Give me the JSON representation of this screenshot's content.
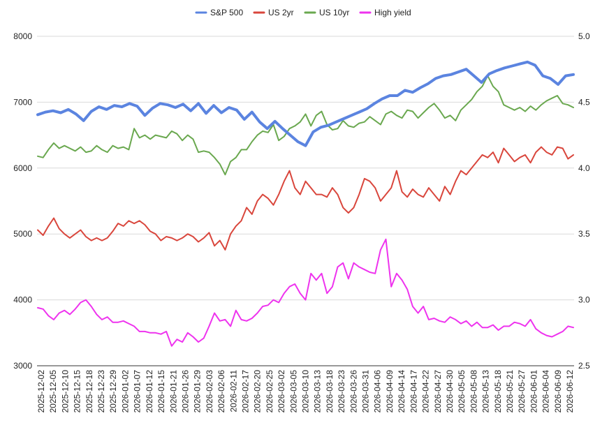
{
  "chart_data": {
    "type": "line",
    "title": "",
    "legend_position": "top",
    "grid": "horizontal",
    "x_tick_labels": [
      "2025-12-02",
      "2025-12-05",
      "2025-12-10",
      "2025-12-15",
      "2025-12-18",
      "2025-12-23",
      "2025-12-29",
      "2026-01-02",
      "2026-01-07",
      "2026-01-12",
      "2026-01-15",
      "2026-01-21",
      "2026-01-26",
      "2026-01-29",
      "2026-02-03",
      "2026-02-06",
      "2026-02-11",
      "2026-02-17",
      "2026-02-20",
      "2026-02-25",
      "2026-03-02",
      "2026-03-05",
      "2026-03-10",
      "2026-03-13",
      "2026-03-18",
      "2026-03-23",
      "2026-03-26",
      "2026-03-31",
      "2026-04-06",
      "2026-04-09",
      "2026-04-14",
      "2026-04-17",
      "2026-04-22",
      "2026-04-27",
      "2026-04-30",
      "2026-05-05",
      "2026-05-08",
      "2026-05-13",
      "2026-05-18",
      "2026-05-21",
      "2026-05-27",
      "2026-06-01",
      "2026-06-04",
      "2026-06-09",
      "2026-06-12"
    ],
    "y_left": {
      "min": 3000,
      "max": 8000,
      "ticks": [
        "3000",
        "4000",
        "5000",
        "6000",
        "7000",
        "8000"
      ]
    },
    "y_right": {
      "min": 2.5,
      "max": 5.0,
      "ticks": [
        "2.5",
        "3.0",
        "3.5",
        "4.0",
        "4.5",
        "5.0"
      ]
    },
    "series": [
      {
        "name": "S&P 500",
        "axis": "left",
        "color": "#5b84e0",
        "width": 4,
        "values": [
          6810,
          6850,
          6870,
          6840,
          6890,
          6820,
          6720,
          6860,
          6930,
          6890,
          6950,
          6930,
          6980,
          6940,
          6800,
          6910,
          6980,
          6960,
          6920,
          6970,
          6870,
          6980,
          6830,
          6950,
          6840,
          6920,
          6880,
          6740,
          6850,
          6700,
          6600,
          6710,
          6600,
          6500,
          6400,
          6340,
          6550,
          6620,
          6650,
          6700,
          6750,
          6800,
          6850,
          6900,
          6980,
          7050,
          7100,
          7100,
          7180,
          7150,
          7220,
          7280,
          7360,
          7400,
          7420,
          7460,
          7500,
          7400,
          7300,
          7430,
          7480,
          7520,
          7550,
          7580,
          7610,
          7560,
          7400,
          7360,
          7270,
          7400,
          7420
        ]
      },
      {
        "name": "US 2yr",
        "axis": "right",
        "color": "#d9463c",
        "width": 2,
        "values": [
          3.53,
          3.49,
          3.56,
          3.62,
          3.54,
          3.5,
          3.47,
          3.5,
          3.53,
          3.48,
          3.45,
          3.47,
          3.45,
          3.47,
          3.52,
          3.58,
          3.56,
          3.6,
          3.58,
          3.6,
          3.57,
          3.52,
          3.5,
          3.45,
          3.48,
          3.47,
          3.45,
          3.47,
          3.5,
          3.48,
          3.44,
          3.47,
          3.51,
          3.41,
          3.45,
          3.38,
          3.5,
          3.56,
          3.6,
          3.7,
          3.65,
          3.75,
          3.8,
          3.77,
          3.72,
          3.8,
          3.9,
          3.98,
          3.85,
          3.8,
          3.9,
          3.85,
          3.8,
          3.8,
          3.78,
          3.85,
          3.8,
          3.7,
          3.66,
          3.7,
          3.8,
          3.92,
          3.9,
          3.85,
          3.75,
          3.8,
          3.85,
          3.98,
          3.82,
          3.78,
          3.84,
          3.8,
          3.78,
          3.85,
          3.8,
          3.75,
          3.86,
          3.8,
          3.9,
          3.98,
          3.95,
          4.0,
          4.05,
          4.1,
          4.08,
          4.12,
          4.04,
          4.15,
          4.1,
          4.05,
          4.08,
          4.1,
          4.04,
          4.12,
          4.16,
          4.12,
          4.1,
          4.16,
          4.15,
          4.07,
          4.1
        ]
      },
      {
        "name": "US 10yr",
        "axis": "right",
        "color": "#6aa84f",
        "width": 2,
        "values": [
          4.09,
          4.08,
          4.14,
          4.19,
          4.15,
          4.17,
          4.15,
          4.13,
          4.16,
          4.12,
          4.13,
          4.17,
          4.14,
          4.12,
          4.17,
          4.15,
          4.16,
          4.14,
          4.3,
          4.23,
          4.25,
          4.22,
          4.25,
          4.24,
          4.23,
          4.28,
          4.26,
          4.21,
          4.25,
          4.22,
          4.12,
          4.13,
          4.12,
          4.08,
          4.03,
          3.95,
          4.05,
          4.08,
          4.14,
          4.14,
          4.2,
          4.25,
          4.28,
          4.27,
          4.33,
          4.21,
          4.24,
          4.3,
          4.32,
          4.35,
          4.41,
          4.32,
          4.4,
          4.43,
          4.33,
          4.29,
          4.3,
          4.36,
          4.32,
          4.31,
          4.34,
          4.35,
          4.39,
          4.36,
          4.33,
          4.41,
          4.43,
          4.4,
          4.38,
          4.44,
          4.43,
          4.38,
          4.42,
          4.46,
          4.49,
          4.44,
          4.38,
          4.4,
          4.36,
          4.44,
          4.48,
          4.52,
          4.58,
          4.62,
          4.7,
          4.62,
          4.58,
          4.48,
          4.46,
          4.44,
          4.46,
          4.43,
          4.47,
          4.44,
          4.48,
          4.51,
          4.53,
          4.55,
          4.49,
          4.48,
          4.46
        ]
      },
      {
        "name": "High yield",
        "axis": "right",
        "color": "#ee33ee",
        "width": 2,
        "values": [
          2.94,
          2.93,
          2.88,
          2.85,
          2.9,
          2.92,
          2.89,
          2.93,
          2.98,
          3.0,
          2.95,
          2.89,
          2.85,
          2.87,
          2.83,
          2.83,
          2.84,
          2.82,
          2.8,
          2.76,
          2.76,
          2.75,
          2.75,
          2.74,
          2.76,
          2.65,
          2.7,
          2.68,
          2.75,
          2.72,
          2.68,
          2.71,
          2.8,
          2.9,
          2.84,
          2.85,
          2.8,
          2.92,
          2.85,
          2.84,
          2.86,
          2.9,
          2.95,
          2.96,
          3.0,
          2.98,
          3.05,
          3.1,
          3.12,
          3.05,
          3.0,
          3.2,
          3.15,
          3.2,
          3.05,
          3.1,
          3.25,
          3.28,
          3.16,
          3.28,
          3.25,
          3.23,
          3.21,
          3.2,
          3.38,
          3.46,
          3.1,
          3.2,
          3.15,
          3.08,
          2.95,
          2.9,
          2.95,
          2.85,
          2.86,
          2.84,
          2.83,
          2.87,
          2.85,
          2.82,
          2.84,
          2.8,
          2.83,
          2.79,
          2.79,
          2.81,
          2.77,
          2.8,
          2.8,
          2.83,
          2.82,
          2.8,
          2.85,
          2.78,
          2.75,
          2.73,
          2.72,
          2.74,
          2.76,
          2.8,
          2.79
        ]
      }
    ]
  }
}
